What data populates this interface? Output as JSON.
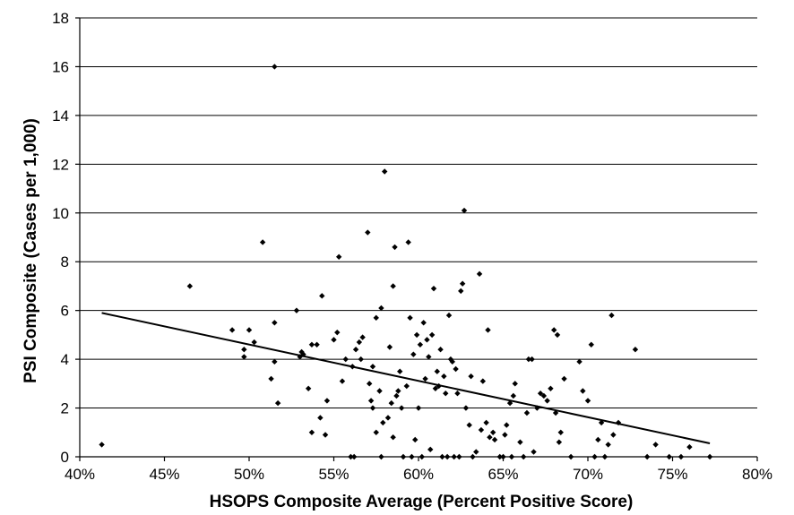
{
  "chart_data": {
    "type": "scatter",
    "xlabel": "HSOPS Composite Average (Percent Positive Score)",
    "ylabel": "PSI Composite (Cases per 1,000)",
    "xlim": [
      0.4,
      0.8
    ],
    "ylim": [
      0,
      18
    ],
    "x_ticks": [
      0.4,
      0.45,
      0.5,
      0.55,
      0.6,
      0.65,
      0.7,
      0.75,
      0.8
    ],
    "x_tick_labels": [
      "40%",
      "45%",
      "50%",
      "55%",
      "60%",
      "65%",
      "70%",
      "75%",
      "80%"
    ],
    "y_ticks": [
      0,
      2,
      4,
      6,
      8,
      10,
      12,
      14,
      16,
      18
    ],
    "y_tick_labels": [
      "0",
      "2",
      "4",
      "6",
      "8",
      "10",
      "12",
      "14",
      "16",
      "18"
    ],
    "grid": "horizontal",
    "trendline": {
      "x": [
        0.413,
        0.772
      ],
      "y": [
        5.9,
        0.55
      ]
    },
    "points": [
      [
        0.413,
        0.5
      ],
      [
        0.465,
        7.0
      ],
      [
        0.49,
        5.2
      ],
      [
        0.497,
        4.1
      ],
      [
        0.497,
        4.4
      ],
      [
        0.5,
        5.2
      ],
      [
        0.503,
        4.7
      ],
      [
        0.508,
        8.8
      ],
      [
        0.513,
        3.2
      ],
      [
        0.515,
        3.9
      ],
      [
        0.515,
        16.0
      ],
      [
        0.515,
        5.5
      ],
      [
        0.517,
        2.2
      ],
      [
        0.528,
        6.0
      ],
      [
        0.53,
        4.1
      ],
      [
        0.531,
        4.3
      ],
      [
        0.532,
        4.2
      ],
      [
        0.535,
        2.8
      ],
      [
        0.537,
        4.6
      ],
      [
        0.537,
        1.0
      ],
      [
        0.54,
        4.6
      ],
      [
        0.542,
        1.6
      ],
      [
        0.543,
        6.6
      ],
      [
        0.545,
        0.9
      ],
      [
        0.546,
        2.3
      ],
      [
        0.55,
        4.8
      ],
      [
        0.552,
        5.1
      ],
      [
        0.553,
        8.2
      ],
      [
        0.555,
        3.1
      ],
      [
        0.557,
        4.0
      ],
      [
        0.56,
        0.0
      ],
      [
        0.561,
        3.7
      ],
      [
        0.562,
        0.0
      ],
      [
        0.563,
        4.4
      ],
      [
        0.565,
        4.7
      ],
      [
        0.566,
        4.0
      ],
      [
        0.567,
        4.9
      ],
      [
        0.57,
        9.2
      ],
      [
        0.571,
        3.0
      ],
      [
        0.572,
        2.3
      ],
      [
        0.573,
        3.7
      ],
      [
        0.573,
        2.0
      ],
      [
        0.575,
        1.0
      ],
      [
        0.575,
        5.7
      ],
      [
        0.577,
        2.7
      ],
      [
        0.578,
        0.0
      ],
      [
        0.578,
        6.1
      ],
      [
        0.579,
        1.4
      ],
      [
        0.58,
        11.7
      ],
      [
        0.582,
        1.6
      ],
      [
        0.583,
        4.5
      ],
      [
        0.584,
        2.2
      ],
      [
        0.585,
        0.8
      ],
      [
        0.585,
        7.0
      ],
      [
        0.586,
        8.6
      ],
      [
        0.587,
        2.5
      ],
      [
        0.588,
        2.7
      ],
      [
        0.589,
        3.5
      ],
      [
        0.59,
        2.0
      ],
      [
        0.591,
        0.0
      ],
      [
        0.593,
        2.9
      ],
      [
        0.594,
        8.8
      ],
      [
        0.595,
        5.7
      ],
      [
        0.596,
        0.0
      ],
      [
        0.597,
        4.2
      ],
      [
        0.598,
        0.7
      ],
      [
        0.599,
        5.0
      ],
      [
        0.6,
        2.0
      ],
      [
        0.601,
        4.6
      ],
      [
        0.602,
        0.0
      ],
      [
        0.603,
        5.5
      ],
      [
        0.604,
        3.2
      ],
      [
        0.605,
        4.8
      ],
      [
        0.606,
        4.1
      ],
      [
        0.607,
        0.3
      ],
      [
        0.608,
        5.0
      ],
      [
        0.609,
        6.9
      ],
      [
        0.61,
        2.8
      ],
      [
        0.611,
        3.5
      ],
      [
        0.612,
        2.9
      ],
      [
        0.613,
        4.4
      ],
      [
        0.614,
        0.0
      ],
      [
        0.615,
        3.3
      ],
      [
        0.616,
        2.6
      ],
      [
        0.617,
        0.0
      ],
      [
        0.618,
        5.8
      ],
      [
        0.619,
        4.0
      ],
      [
        0.62,
        3.9
      ],
      [
        0.621,
        0.0
      ],
      [
        0.622,
        3.6
      ],
      [
        0.623,
        2.6
      ],
      [
        0.624,
        0.0
      ],
      [
        0.625,
        6.8
      ],
      [
        0.626,
        7.1
      ],
      [
        0.627,
        10.1
      ],
      [
        0.628,
        2.0
      ],
      [
        0.63,
        1.3
      ],
      [
        0.631,
        3.3
      ],
      [
        0.632,
        0.0
      ],
      [
        0.634,
        0.2
      ],
      [
        0.636,
        7.5
      ],
      [
        0.637,
        1.1
      ],
      [
        0.638,
        3.1
      ],
      [
        0.64,
        1.4
      ],
      [
        0.641,
        5.2
      ],
      [
        0.642,
        0.8
      ],
      [
        0.644,
        1.0
      ],
      [
        0.645,
        0.7
      ],
      [
        0.648,
        0.0
      ],
      [
        0.65,
        0.0
      ],
      [
        0.651,
        0.9
      ],
      [
        0.652,
        1.3
      ],
      [
        0.654,
        2.2
      ],
      [
        0.655,
        0.0
      ],
      [
        0.656,
        2.5
      ],
      [
        0.657,
        3.0
      ],
      [
        0.66,
        0.6
      ],
      [
        0.662,
        0.0
      ],
      [
        0.664,
        1.8
      ],
      [
        0.665,
        4.0
      ],
      [
        0.667,
        4.0
      ],
      [
        0.668,
        0.2
      ],
      [
        0.67,
        2.0
      ],
      [
        0.672,
        2.6
      ],
      [
        0.674,
        2.5
      ],
      [
        0.676,
        2.3
      ],
      [
        0.678,
        2.8
      ],
      [
        0.68,
        5.2
      ],
      [
        0.681,
        1.8
      ],
      [
        0.682,
        5.0
      ],
      [
        0.683,
        0.6
      ],
      [
        0.684,
        1.0
      ],
      [
        0.686,
        3.2
      ],
      [
        0.69,
        0.0
      ],
      [
        0.695,
        3.9
      ],
      [
        0.697,
        2.7
      ],
      [
        0.7,
        2.3
      ],
      [
        0.702,
        4.6
      ],
      [
        0.704,
        0.0
      ],
      [
        0.706,
        0.7
      ],
      [
        0.708,
        1.4
      ],
      [
        0.71,
        0.0
      ],
      [
        0.712,
        0.5
      ],
      [
        0.714,
        5.8
      ],
      [
        0.715,
        0.9
      ],
      [
        0.718,
        1.4
      ],
      [
        0.728,
        4.4
      ],
      [
        0.735,
        0.0
      ],
      [
        0.74,
        0.5
      ],
      [
        0.748,
        0.0
      ],
      [
        0.755,
        0.0
      ],
      [
        0.76,
        0.4
      ],
      [
        0.772,
        0.0
      ]
    ]
  }
}
